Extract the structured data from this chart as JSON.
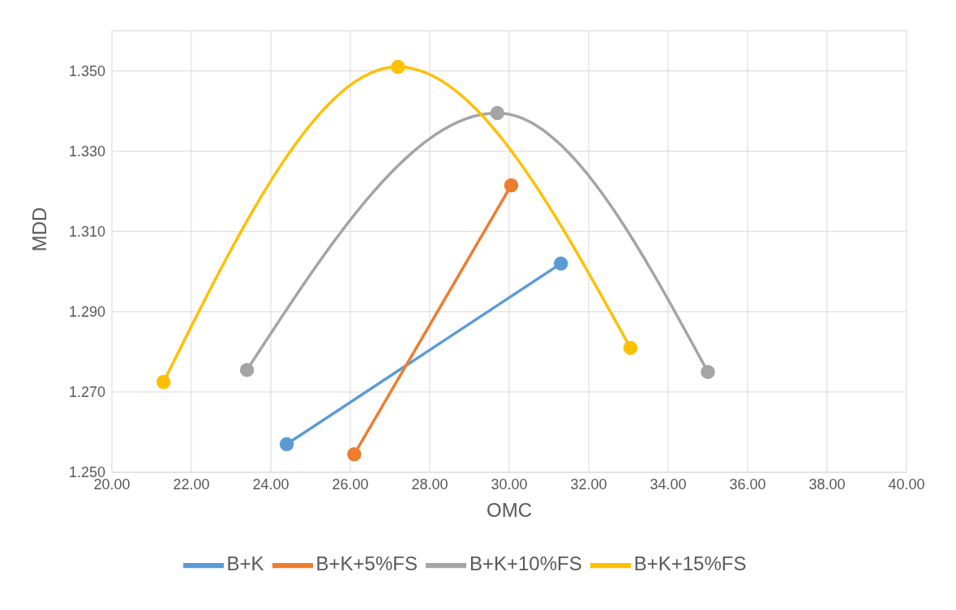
{
  "chart_data": {
    "type": "line",
    "xlabel": "OMC",
    "ylabel": "MDD",
    "series": [
      {
        "name": "B+K",
        "color": "#5b9bd5",
        "x": [
          24.4,
          31.3
        ],
        "values": [
          1.257,
          1.302
        ]
      },
      {
        "name": "B+K+5%FS",
        "color": "#ed7d31",
        "x": [
          26.1,
          30.05
        ],
        "values": [
          1.2545,
          1.3215
        ]
      },
      {
        "name": "B+K+10%FS",
        "color": "#a5a5a5",
        "x": [
          23.4,
          29.7,
          35.0
        ],
        "values": [
          1.2755,
          1.3395,
          1.275
        ]
      },
      {
        "name": "B+K+15%FS",
        "color": "#ffc000",
        "x": [
          21.3,
          27.2,
          33.05
        ],
        "values": [
          1.2725,
          1.351,
          1.281
        ]
      }
    ],
    "xlim": [
      20,
      40
    ],
    "xticks": [
      {
        "value": 20,
        "label": "20.00"
      },
      {
        "value": 22,
        "label": "22.00"
      },
      {
        "value": 24,
        "label": "24.00"
      },
      {
        "value": 26,
        "label": "26.00"
      },
      {
        "value": 28,
        "label": "28.00"
      },
      {
        "value": 30,
        "label": "30.00"
      },
      {
        "value": 32,
        "label": "32.00"
      },
      {
        "value": 34,
        "label": "34.00"
      },
      {
        "value": 36,
        "label": "36.00"
      },
      {
        "value": 38,
        "label": "38.00"
      },
      {
        "value": 40,
        "label": "40.00"
      }
    ],
    "ylim": [
      1.25,
      1.36
    ],
    "yticks": [
      {
        "value": 1.25,
        "label": "1.250"
      },
      {
        "value": 1.27,
        "label": "1.270"
      },
      {
        "value": 1.29,
        "label": "1.290"
      },
      {
        "value": 1.31,
        "label": "1.310"
      },
      {
        "value": 1.33,
        "label": "1.330"
      },
      {
        "value": 1.35,
        "label": "1.350"
      }
    ],
    "grid": true,
    "legend": "bottom",
    "marker": "circle",
    "line_style": "solid"
  }
}
